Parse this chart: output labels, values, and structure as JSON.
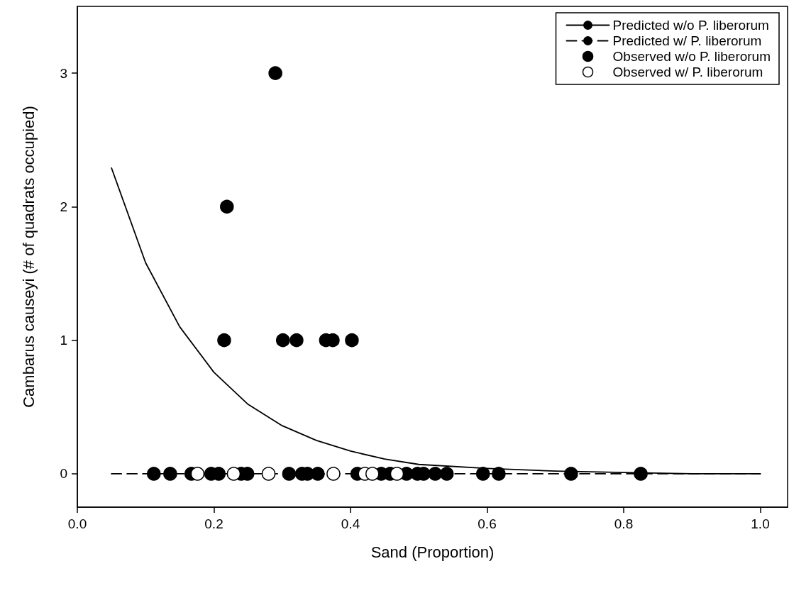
{
  "chart_data": {
    "type": "scatter",
    "xlabel": "Sand (Proportion)",
    "ylabel": "Cambarus causeyi (# of quadrats occupied)",
    "xlim": [
      0,
      1.04
    ],
    "xticks": [
      {
        "value": 0,
        "label": "0.0"
      },
      0.2,
      0.4,
      0.6,
      0.8,
      {
        "value": 1,
        "label": "1.0"
      }
    ],
    "ylim": [
      -0.25,
      3.5
    ],
    "yticks": [
      0,
      1,
      2,
      3
    ],
    "grid": false,
    "legend": "top right",
    "series": [
      {
        "name": "Predicted w/o P. liberorum",
        "type": "line",
        "line_style": "solid",
        "marker": "none",
        "color": "#000000",
        "x": [
          0.05,
          0.1,
          0.15,
          0.2,
          0.25,
          0.3,
          0.35,
          0.4,
          0.45,
          0.5,
          0.6,
          0.7,
          0.8,
          0.9,
          1.0
        ],
        "values": [
          2.29,
          1.58,
          1.1,
          0.76,
          0.52,
          0.36,
          0.25,
          0.17,
          0.11,
          0.07,
          0.04,
          0.02,
          0.01,
          0,
          0
        ]
      },
      {
        "name": "Predicted w/ P. liberorum",
        "type": "line",
        "line_style": "dashed",
        "marker": "none",
        "color": "#000000",
        "x": [
          0.05,
          1.0
        ],
        "values": [
          0,
          0
        ]
      },
      {
        "name": "Observed w/o P. liberorum",
        "type": "scatter",
        "marker": "circle",
        "color": "#000000",
        "x": [
          0.29,
          0.219,
          0.215,
          0.301,
          0.321,
          0.364,
          0.374,
          0.402,
          0.112,
          0.136,
          0.167,
          0.196,
          0.207,
          0.24,
          0.249,
          0.31,
          0.329,
          0.337,
          0.352,
          0.41,
          0.445,
          0.458,
          0.482,
          0.498,
          0.507,
          0.524,
          0.541,
          0.594,
          0.617,
          0.723,
          0.825
        ],
        "values": [
          3,
          2,
          1,
          1,
          1,
          1,
          1,
          1,
          0,
          0,
          0,
          0,
          0,
          0,
          0,
          0,
          0,
          0,
          0,
          0,
          0,
          0,
          0,
          0,
          0,
          0,
          0,
          0,
          0,
          0,
          0
        ]
      },
      {
        "name": "Observed w/ P. liberorum",
        "type": "scatter",
        "marker": "circle",
        "color": "#ffffff",
        "x": [
          0.176,
          0.229,
          0.28,
          0.375,
          0.421,
          0.432,
          0.468
        ],
        "values": [
          0,
          0,
          0,
          0,
          0,
          0,
          0
        ]
      }
    ]
  }
}
